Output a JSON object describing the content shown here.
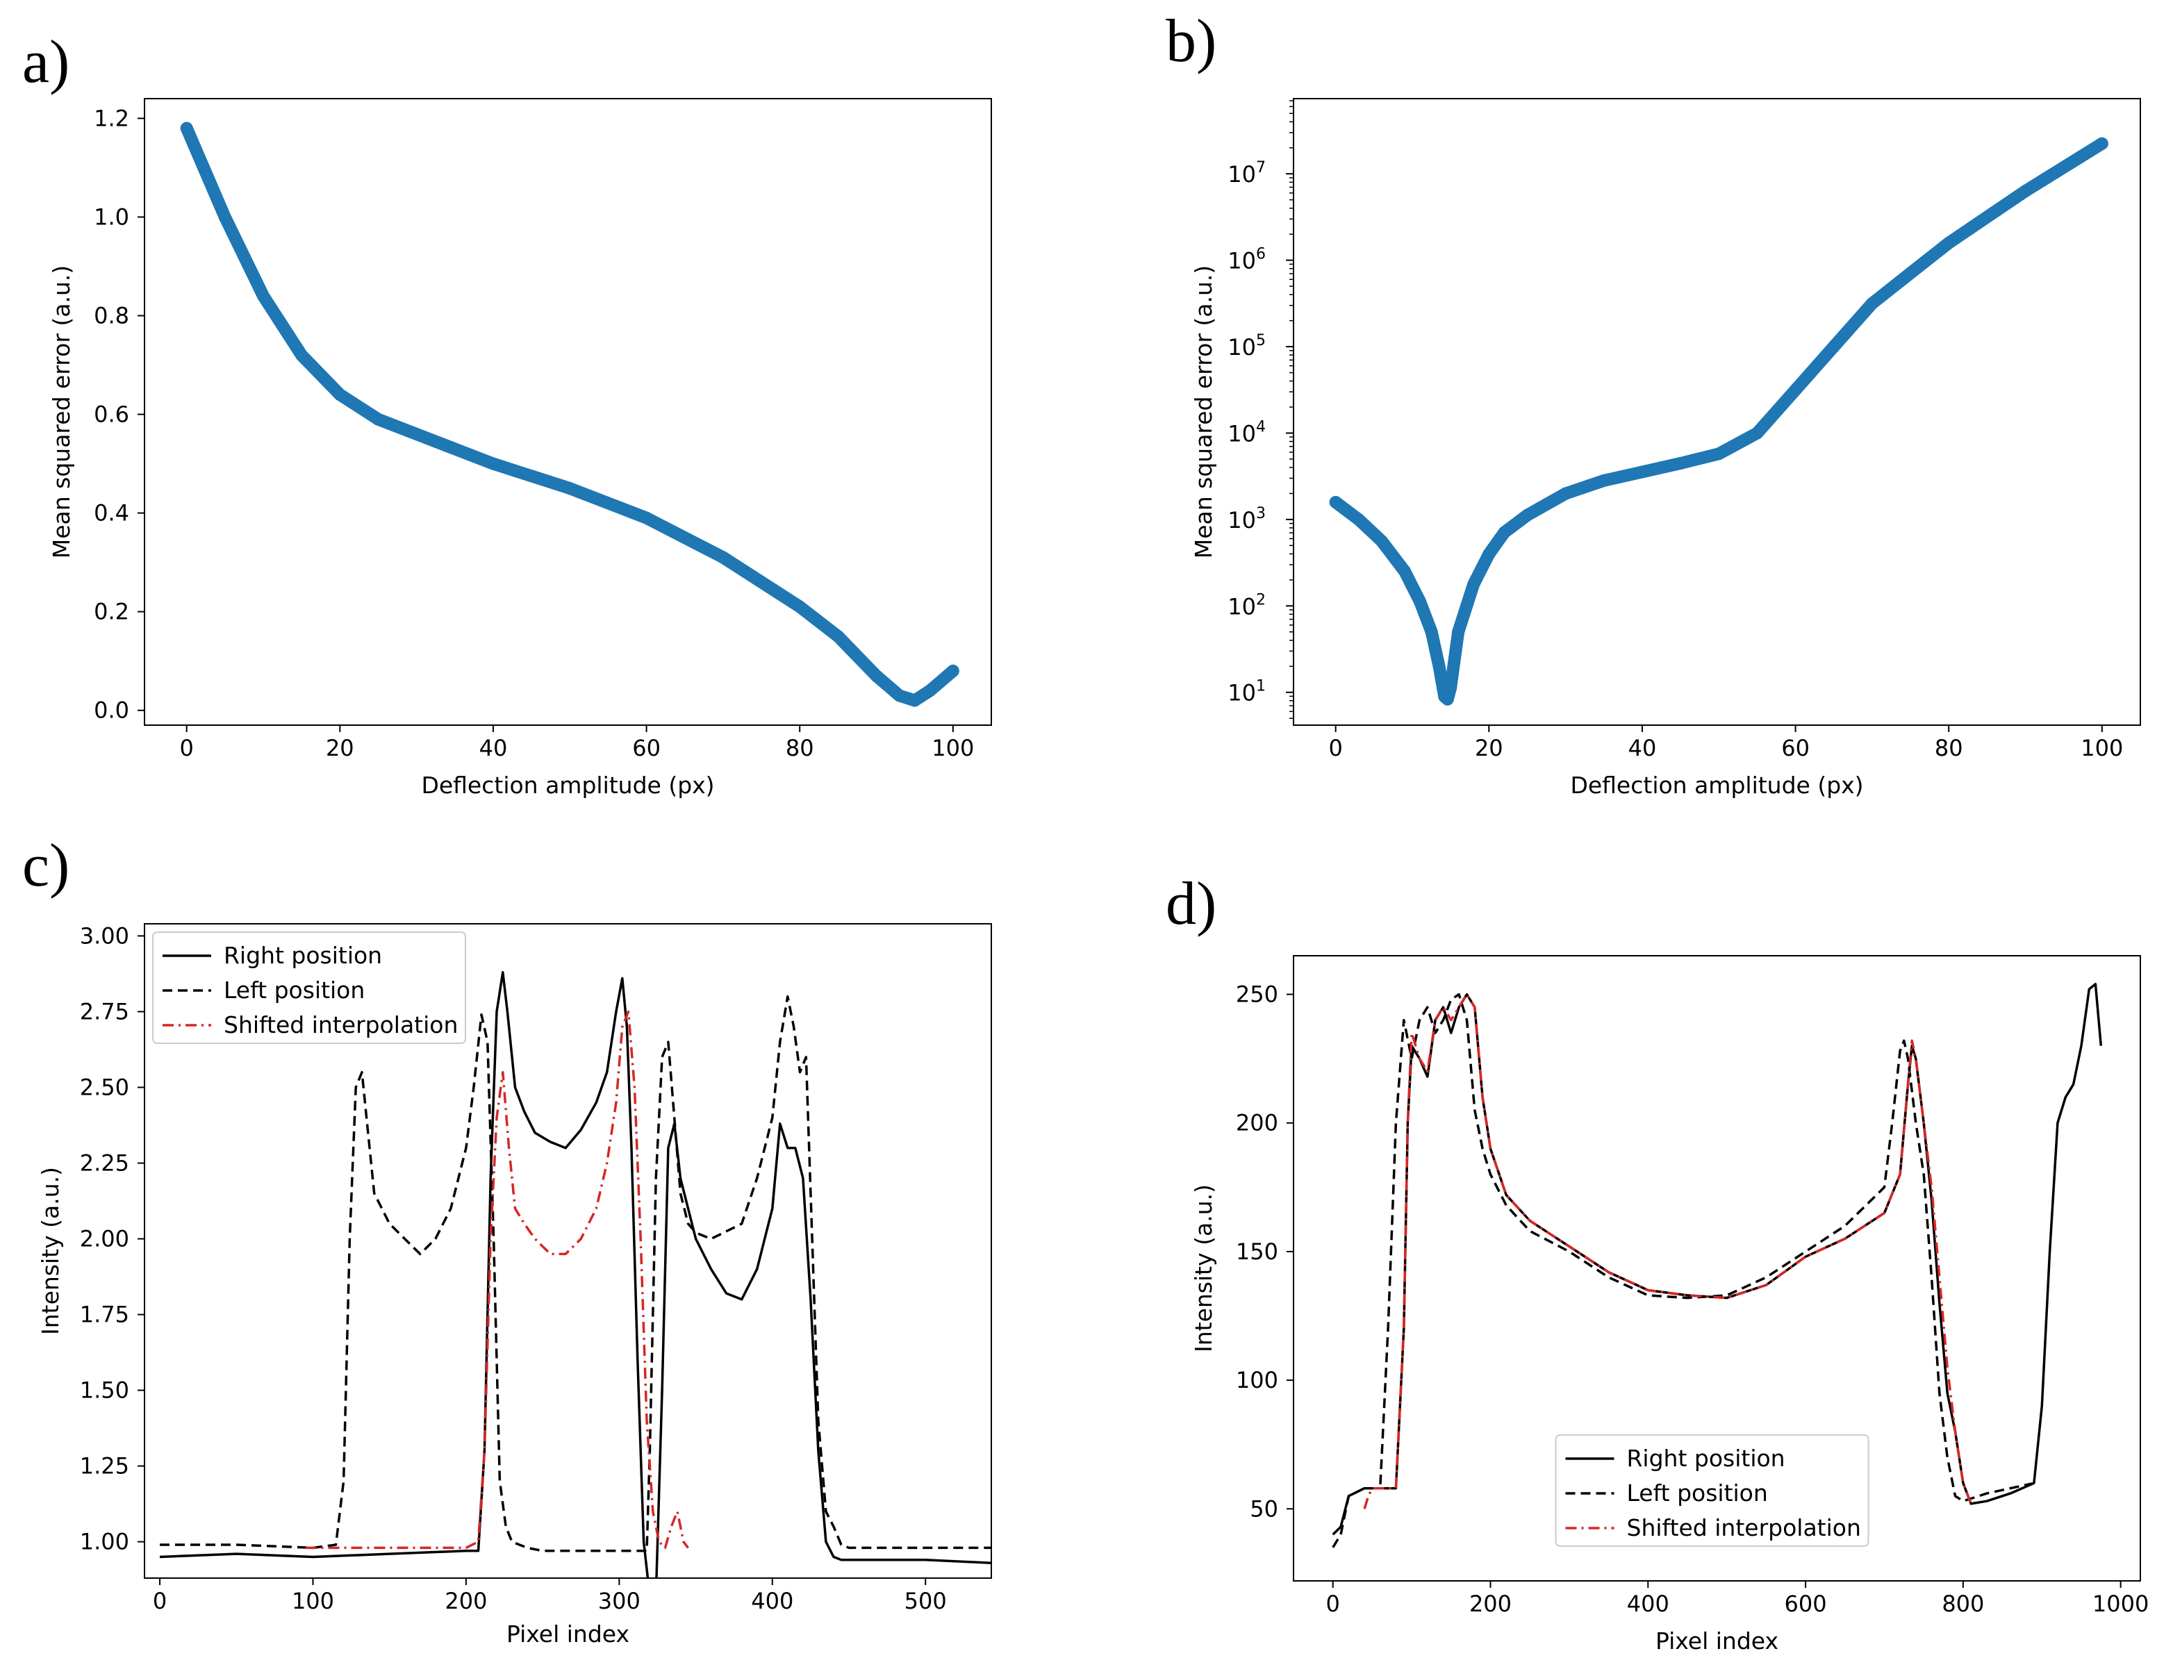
{
  "chart_data": [
    {
      "panel": "a)",
      "type": "scatter",
      "xlabel": "Deflection amplitude (px)",
      "ylabel": "Mean squared error (a.u.)",
      "xlim": [
        -5.5,
        105
      ],
      "ylim": [
        -0.03,
        1.24
      ],
      "yscale": "linear",
      "xticks": [
        0,
        20,
        40,
        60,
        80,
        100
      ],
      "xtick_labels": [
        "0",
        "20",
        "40",
        "60",
        "80",
        "100"
      ],
      "yticks": [
        0.0,
        0.2,
        0.4,
        0.6,
        0.8,
        1.0,
        1.2
      ],
      "ytick_labels": [
        "0.0",
        "0.2",
        "0.4",
        "0.6",
        "0.8",
        "1.0",
        "1.2"
      ],
      "color": "#1f77b4",
      "x": [
        0,
        5,
        10,
        15,
        20,
        25,
        30,
        40,
        50,
        60,
        70,
        80,
        85,
        90,
        93,
        95,
        97,
        100
      ],
      "y": [
        1.18,
        1.0,
        0.84,
        0.72,
        0.64,
        0.59,
        0.56,
        0.5,
        0.45,
        0.39,
        0.31,
        0.21,
        0.15,
        0.07,
        0.03,
        0.02,
        0.04,
        0.08
      ]
    },
    {
      "panel": "b)",
      "type": "scatter",
      "xlabel": "Deflection amplitude (px)",
      "ylabel": "Mean squared error (a.u.)",
      "xlim": [
        -5.5,
        105
      ],
      "log_ylim": [
        0.62,
        7.87
      ],
      "yscale": "log",
      "xticks": [
        0,
        20,
        40,
        60,
        80,
        100
      ],
      "xtick_labels": [
        "0",
        "20",
        "40",
        "60",
        "80",
        "100"
      ],
      "ytick_exponents": [
        1,
        2,
        3,
        4,
        5,
        6,
        7
      ],
      "ytick_base": "10",
      "color": "#1f77b4",
      "x": [
        0,
        3,
        6,
        9,
        11,
        12.5,
        13.5,
        14.2,
        14.6,
        15,
        16,
        18,
        20,
        22,
        25,
        30,
        35,
        40,
        45,
        50,
        55,
        60,
        65,
        70,
        75,
        80,
        90,
        100
      ],
      "log10_y": [
        3.2,
        3.0,
        2.75,
        2.4,
        2.05,
        1.7,
        1.3,
        0.95,
        0.92,
        1.05,
        1.7,
        2.25,
        2.6,
        2.85,
        3.05,
        3.3,
        3.45,
        3.55,
        3.65,
        3.76,
        4.0,
        4.5,
        5.0,
        5.5,
        5.85,
        6.2,
        6.8,
        7.35
      ]
    },
    {
      "panel": "c)",
      "type": "line",
      "xlabel": "Pixel index",
      "ylabel": "Intensity (a.u.)",
      "xlim": [
        -10,
        543
      ],
      "ylim": [
        0.88,
        3.04
      ],
      "xticks": [
        0,
        100,
        200,
        300,
        400,
        500
      ],
      "xtick_labels": [
        "0",
        "100",
        "200",
        "300",
        "400",
        "500"
      ],
      "yticks": [
        1.0,
        1.25,
        1.5,
        1.75,
        2.0,
        2.25,
        2.5,
        2.75,
        3.0
      ],
      "ytick_labels": [
        "1.00",
        "1.25",
        "1.50",
        "1.75",
        "2.00",
        "2.25",
        "2.50",
        "2.75",
        "3.00"
      ],
      "legend_position": "upper-left",
      "series": [
        {
          "name": "Right position",
          "style": "solid",
          "color": "#000000",
          "x": [
            0,
            50,
            100,
            150,
            200,
            208,
            212,
            216,
            220,
            224,
            227,
            232,
            238,
            245,
            255,
            265,
            275,
            285,
            292,
            298,
            302,
            305,
            308,
            312,
            316,
            320,
            324,
            328,
            332,
            336,
            340,
            350,
            360,
            370,
            380,
            390,
            400,
            405,
            410,
            415,
            420,
            425,
            430,
            435,
            440,
            445,
            450,
            470,
            500,
            543
          ],
          "y": [
            0.95,
            0.96,
            0.95,
            0.96,
            0.97,
            0.97,
            1.3,
            2.2,
            2.75,
            2.88,
            2.75,
            2.5,
            2.42,
            2.35,
            2.32,
            2.3,
            2.36,
            2.45,
            2.55,
            2.75,
            2.86,
            2.7,
            2.3,
            1.6,
            1.0,
            0.82,
            0.82,
            1.5,
            2.3,
            2.38,
            2.2,
            2.0,
            1.9,
            1.82,
            1.8,
            1.9,
            2.1,
            2.38,
            2.3,
            2.3,
            2.2,
            1.8,
            1.3,
            1.0,
            0.95,
            0.94,
            0.94,
            0.94,
            0.94,
            0.93
          ]
        },
        {
          "name": "Left position",
          "style": "dashed",
          "color": "#000000",
          "x": [
            0,
            50,
            100,
            115,
            120,
            124,
            128,
            132,
            136,
            140,
            145,
            150,
            160,
            170,
            180,
            190,
            200,
            205,
            210,
            214,
            218,
            222,
            226,
            230,
            240,
            250,
            270,
            300,
            318,
            320,
            324,
            328,
            332,
            336,
            340,
            345,
            350,
            360,
            380,
            390,
            400,
            405,
            410,
            414,
            418,
            422,
            426,
            430,
            435,
            440,
            445,
            450,
            470,
            500,
            543
          ],
          "y": [
            0.99,
            0.99,
            0.98,
            0.99,
            1.2,
            2.0,
            2.5,
            2.55,
            2.35,
            2.15,
            2.1,
            2.05,
            2.0,
            1.95,
            2.0,
            2.1,
            2.3,
            2.5,
            2.74,
            2.65,
            2.0,
            1.2,
            1.05,
            1.0,
            0.98,
            0.97,
            0.97,
            0.97,
            0.97,
            1.3,
            2.2,
            2.6,
            2.65,
            2.4,
            2.15,
            2.05,
            2.02,
            2.0,
            2.05,
            2.2,
            2.4,
            2.65,
            2.8,
            2.7,
            2.55,
            2.6,
            2.0,
            1.4,
            1.1,
            1.05,
            0.99,
            0.98,
            0.98,
            0.98,
            0.98
          ]
        },
        {
          "name": "Shifted interpolation",
          "style": "dashdot",
          "color": "#d62728",
          "x": [
            95,
            120,
            150,
            180,
            200,
            208,
            212,
            216,
            220,
            224,
            228,
            232,
            238,
            245,
            255,
            265,
            275,
            285,
            292,
            298,
            302,
            306,
            310,
            314,
            318,
            322,
            326,
            330,
            334,
            338,
            342,
            345
          ],
          "y": [
            0.98,
            0.98,
            0.98,
            0.98,
            0.98,
            1.0,
            1.3,
            2.0,
            2.4,
            2.55,
            2.3,
            2.1,
            2.05,
            2.0,
            1.95,
            1.95,
            2.0,
            2.1,
            2.25,
            2.45,
            2.7,
            2.75,
            2.5,
            2.0,
            1.4,
            1.1,
            1.0,
            0.98,
            1.05,
            1.1,
            1.0,
            0.98
          ]
        }
      ]
    },
    {
      "panel": "d)",
      "type": "line",
      "xlabel": "Pixel index",
      "ylabel": "Intensity (a.u.)",
      "xlim": [
        -50,
        1025
      ],
      "ylim": [
        22,
        265
      ],
      "xticks": [
        0,
        200,
        400,
        600,
        800,
        1000
      ],
      "xtick_labels": [
        "0",
        "200",
        "400",
        "600",
        "800",
        "1000"
      ],
      "yticks": [
        50,
        100,
        150,
        200,
        250
      ],
      "ytick_labels": [
        "50",
        "100",
        "150",
        "200",
        "250"
      ],
      "legend_position": "lower-center",
      "series": [
        {
          "name": "Right position",
          "style": "solid",
          "color": "#000000",
          "x": [
            0,
            10,
            20,
            40,
            60,
            80,
            90,
            95,
            100,
            110,
            120,
            130,
            140,
            150,
            160,
            170,
            180,
            190,
            200,
            220,
            250,
            300,
            350,
            400,
            450,
            500,
            550,
            600,
            650,
            700,
            720,
            730,
            735,
            740,
            750,
            760,
            770,
            780,
            790,
            800,
            810,
            830,
            860,
            890,
            900,
            910,
            920,
            930,
            940,
            950,
            960,
            968,
            975
          ],
          "y": [
            40,
            43,
            55,
            58,
            58,
            58,
            120,
            200,
            230,
            225,
            218,
            240,
            245,
            235,
            245,
            250,
            245,
            210,
            190,
            172,
            162,
            152,
            142,
            135,
            133,
            132,
            137,
            148,
            155,
            165,
            180,
            215,
            230,
            225,
            200,
            170,
            130,
            95,
            80,
            60,
            52,
            53,
            56,
            60,
            90,
            150,
            200,
            210,
            215,
            230,
            252,
            254,
            230
          ]
        },
        {
          "name": "Left position",
          "style": "dashed",
          "color": "#000000",
          "x": [
            0,
            10,
            20,
            40,
            60,
            70,
            80,
            90,
            100,
            110,
            120,
            130,
            140,
            150,
            160,
            170,
            180,
            190,
            200,
            220,
            250,
            300,
            350,
            400,
            450,
            500,
            550,
            600,
            650,
            700,
            710,
            720,
            725,
            730,
            740,
            750,
            760,
            770,
            780,
            790,
            800,
            810,
            830,
            860,
            890
          ],
          "y": [
            35,
            40,
            55,
            58,
            58,
            120,
            200,
            240,
            225,
            240,
            245,
            235,
            240,
            248,
            250,
            240,
            205,
            190,
            180,
            168,
            158,
            150,
            140,
            133,
            132,
            133,
            140,
            150,
            160,
            175,
            200,
            228,
            232,
            225,
            200,
            180,
            140,
            95,
            70,
            55,
            53,
            54,
            56,
            58,
            60
          ]
        },
        {
          "name": "Shifted interpolation",
          "style": "dashdot",
          "color": "#d62728",
          "x": [
            40,
            45,
            50,
            60,
            80,
            90,
            95,
            100,
            110,
            120,
            130,
            140,
            150,
            160,
            170,
            180,
            190,
            200,
            220,
            250,
            300,
            350,
            400,
            450,
            500,
            550,
            600,
            650,
            700,
            720,
            730,
            735,
            740,
            750,
            760,
            770,
            780,
            790,
            800,
            810
          ],
          "y": [
            50,
            55,
            58,
            58,
            58,
            120,
            200,
            235,
            225,
            220,
            240,
            245,
            240,
            245,
            250,
            245,
            210,
            190,
            172,
            162,
            152,
            142,
            135,
            133,
            132,
            137,
            148,
            155,
            165,
            180,
            215,
            232,
            225,
            200,
            175,
            140,
            105,
            80,
            60,
            52
          ]
        }
      ]
    }
  ]
}
